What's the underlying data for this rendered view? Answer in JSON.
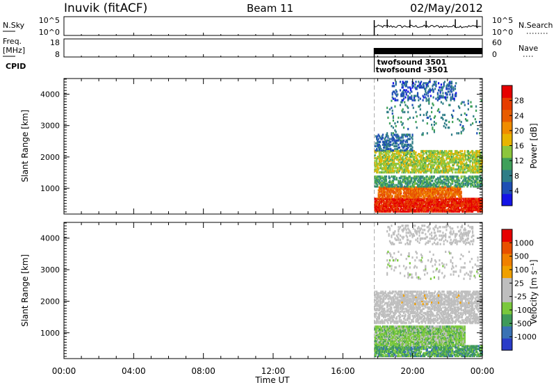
{
  "header": {
    "station": "Inuvik (fitACF)",
    "beam": "Beam 11",
    "date": "02/May/2012"
  },
  "noise_panel": {
    "left_label": "N.Sky",
    "left_ticks": [
      "10^5",
      "10^0"
    ],
    "right_label": "N.Search",
    "right_ticks": [
      "10^5",
      "10^0"
    ]
  },
  "freq_panel": {
    "left_label_1": "Freq.",
    "left_label_2": "[MHz]",
    "left_ticks": [
      "18",
      "8"
    ],
    "right_label": "Nave",
    "right_ticks": [
      "60",
      "0"
    ]
  },
  "cpid": {
    "label": "CPID",
    "entries": [
      "twofsound 3501",
      "twofsound -3501"
    ]
  },
  "colors": {
    "power": [
      "#1414e6",
      "#1e4fb4",
      "#2f7d87",
      "#3fa05a",
      "#8cc63c",
      "#e8b400",
      "#f08c00",
      "#e85c00",
      "#e63c00",
      "#e60000"
    ],
    "velocity": [
      "#2a3cc8",
      "#3a72b4",
      "#3f9a5a",
      "#7ac83c",
      "#bebebe",
      "#bebebe",
      "#f0a000",
      "#f08000",
      "#e85000",
      "#e60000"
    ],
    "ground_scatter": "#bebebe"
  },
  "time_axis": {
    "label": "Time UT",
    "ticks": [
      "00:00",
      "04:00",
      "08:00",
      "12:00",
      "16:00",
      "20:00",
      "00:00"
    ]
  },
  "chart_data": [
    {
      "type": "heatmap",
      "quantity": "power",
      "ylabel": "Slant Range [km]",
      "yticks": [
        1000,
        2000,
        3000,
        4000
      ],
      "ylim": [
        180,
        4500
      ],
      "xlim_hours": [
        0,
        24
      ],
      "colorbar": {
        "label": "Power [dB]",
        "ticks": [
          "4",
          "8",
          "12",
          "16",
          "20",
          "24",
          "28"
        ],
        "range": [
          0,
          30
        ]
      },
      "data_start_hour": 17.8,
      "bands": [
        {
          "x": [
            17.8,
            24.0
          ],
          "y": [
            250,
            700
          ],
          "value": 27,
          "density": 0.8
        },
        {
          "x": [
            18.0,
            22.8
          ],
          "y": [
            700,
            1050
          ],
          "value": 22,
          "density": 0.75
        },
        {
          "x": [
            17.8,
            24.0
          ],
          "y": [
            1050,
            1400
          ],
          "value": 10,
          "density": 0.5
        },
        {
          "x": [
            17.8,
            24.0
          ],
          "y": [
            1500,
            2200
          ],
          "value": 14,
          "density": 0.55
        },
        {
          "x": [
            17.8,
            20.0
          ],
          "y": [
            2200,
            2700
          ],
          "value": 6,
          "density": 0.35
        },
        {
          "x": [
            18.5,
            24.0
          ],
          "y": [
            2700,
            3800
          ],
          "value": 8,
          "density": 0.05
        },
        {
          "x": [
            18.8,
            22.5
          ],
          "y": [
            3800,
            4400
          ],
          "value": 5,
          "density": 0.25
        }
      ]
    },
    {
      "type": "heatmap",
      "quantity": "velocity",
      "ylabel": "Slant Range [km]",
      "yticks": [
        1000,
        2000,
        3000,
        4000
      ],
      "ylim": [
        180,
        4500
      ],
      "xlim_hours": [
        0,
        24
      ],
      "colorbar": {
        "label": "Velocity [m s⁻¹]",
        "ticks": [
          "-1000",
          "-500",
          "-100",
          "-25",
          "25",
          "100",
          "500",
          "1000"
        ],
        "range": [
          -1250,
          1250
        ]
      },
      "data_start_hour": 17.8,
      "bands": [
        {
          "x": [
            17.8,
            24.0
          ],
          "y": [
            250,
            600
          ],
          "value": -600,
          "density": 0.65
        },
        {
          "x": [
            17.8,
            23.0
          ],
          "y": [
            600,
            1200
          ],
          "value": -350,
          "density": 0.8
        },
        {
          "x": [
            17.8,
            24.0
          ],
          "y": [
            1300,
            2300
          ],
          "value": 0,
          "density": 0.5
        },
        {
          "x": [
            19.0,
            24.0
          ],
          "y": [
            1900,
            2200
          ],
          "value": 150,
          "density": 0.15
        },
        {
          "x": [
            18.5,
            24.0
          ],
          "y": [
            2700,
            3600
          ],
          "value": -80,
          "density": 0.06
        },
        {
          "x": [
            18.5,
            23.5
          ],
          "y": [
            3800,
            4400
          ],
          "value": -10,
          "density": 0.2
        }
      ]
    }
  ]
}
